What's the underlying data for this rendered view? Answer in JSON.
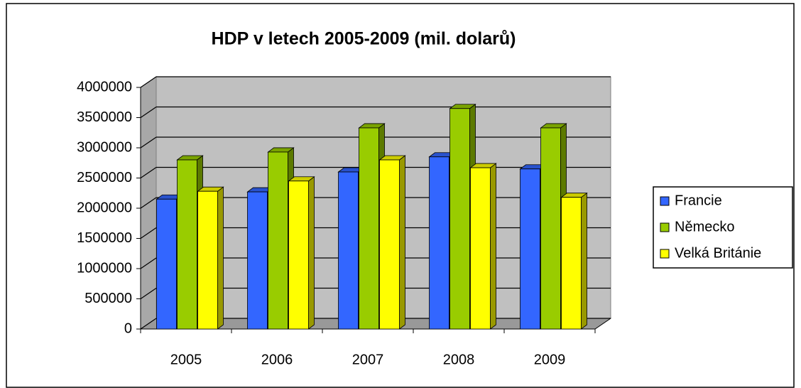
{
  "chart_data": {
    "type": "bar3d",
    "title": "HDP v letech 2005-2009 (mil. dolarů)",
    "categories": [
      "2005",
      "2006",
      "2007",
      "2008",
      "2009"
    ],
    "series": [
      {
        "name": "Francie",
        "color": "#3366ff",
        "values": [
          2150000,
          2270000,
          2600000,
          2850000,
          2650000
        ]
      },
      {
        "name": "Německo",
        "color": "#99cc00",
        "values": [
          2800000,
          2930000,
          3330000,
          3650000,
          3330000
        ]
      },
      {
        "name": "Velká Británie",
        "color": "#ffff00",
        "values": [
          2280000,
          2450000,
          2800000,
          2670000,
          2180000
        ]
      }
    ],
    "ylim": [
      0,
      4000000
    ],
    "yticks": [
      0,
      500000,
      1000000,
      1500000,
      2000000,
      2500000,
      3000000,
      3500000,
      4000000
    ],
    "grid": true,
    "legend": "right"
  }
}
